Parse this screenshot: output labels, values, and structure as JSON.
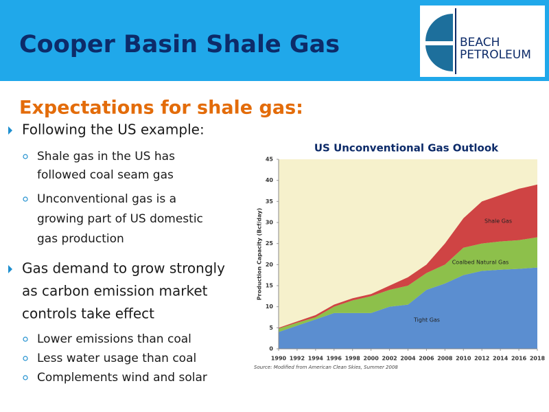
{
  "slide": {
    "title": "Cooper Basin Shale Gas",
    "logo": [
      "BEACH",
      "PETROLEUM"
    ],
    "subtitle": "Expectations for shale gas:",
    "bullets": [
      {
        "lines": [
          "Following the US example:"
        ],
        "subs": [
          [
            "Shale gas in the US has",
            "followed coal seam gas"
          ],
          [
            "Unconventional gas is a",
            "growing  part of US domestic",
            "gas production"
          ]
        ]
      },
      {
        "lines": [
          "Gas demand to grow strongly",
          "as carbon emission market",
          "controls take effect"
        ],
        "subs": [
          [
            "Lower emissions than coal"
          ],
          [
            "Less water usage than coal"
          ],
          [
            "Complements wind and solar"
          ]
        ]
      }
    ]
  },
  "chart_data": {
    "type": "stacked_area",
    "title": "US Unconventional Gas Outlook",
    "y_label": "Production Capacity (Bcf/day)",
    "source": "Source: Modified from American Clean Skies, Summer 2008",
    "x": [
      1990,
      1992,
      1994,
      1996,
      1998,
      2000,
      2002,
      2004,
      2006,
      2008,
      2010,
      2012,
      2014,
      2016,
      2018
    ],
    "xlim": [
      1990,
      2018
    ],
    "xticks": [
      1990,
      1992,
      1994,
      1996,
      1998,
      2000,
      2002,
      2004,
      2006,
      2008,
      2010,
      2012,
      2014,
      2016,
      2018
    ],
    "ylim": [
      0,
      45
    ],
    "yticks": [
      0,
      5,
      10,
      15,
      20,
      25,
      30,
      35,
      40,
      45
    ],
    "grid": false,
    "series": [
      {
        "name": "Tight Gas",
        "color": "#5b8ed0",
        "values": [
          4,
          5.5,
          7,
          8.5,
          8.5,
          8.5,
          10,
          10.5,
          14,
          15.5,
          17.5,
          18.5,
          18.8,
          19,
          19.3
        ]
      },
      {
        "name": "Coalbed Natural Gas",
        "color": "#8dc04b",
        "values": [
          0.8,
          0.7,
          0.5,
          1.5,
          3,
          4,
          4,
          4.5,
          4,
          4.5,
          6.5,
          6.5,
          6.7,
          6.8,
          7.2
        ]
      },
      {
        "name": "Shale Gas",
        "color": "#cf4444",
        "values": [
          0.2,
          0.3,
          0.5,
          0.5,
          0.5,
          0.5,
          1,
          2,
          2,
          5,
          7,
          10,
          11,
          12.2,
          12.5
        ]
      }
    ]
  }
}
